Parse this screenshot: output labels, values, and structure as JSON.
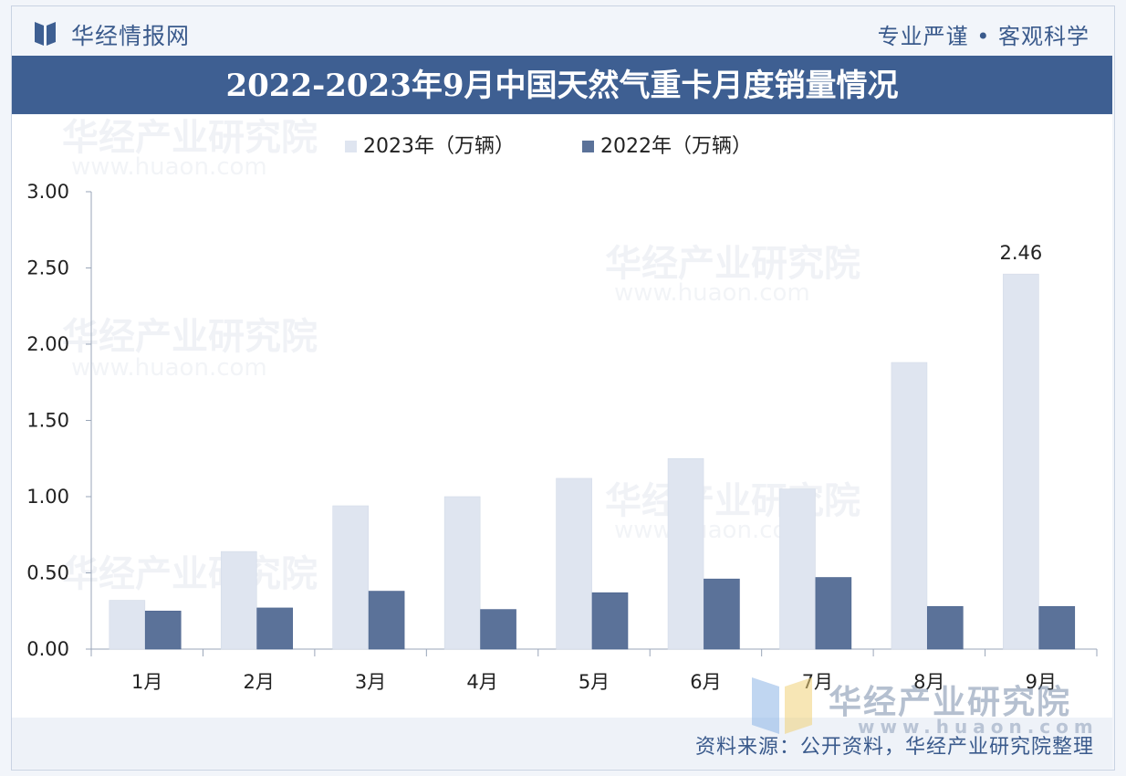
{
  "header": {
    "brand": "华经情报网",
    "slogan": "专业严谨 • 客观科学"
  },
  "chart_data": {
    "type": "bar",
    "title": "2022-2023年9月中国天然气重卡月度销量情况",
    "categories": [
      "1月",
      "2月",
      "3月",
      "4月",
      "5月",
      "6月",
      "7月",
      "8月",
      "9月"
    ],
    "series": [
      {
        "name": "2023年（万辆）",
        "values": [
          0.32,
          0.64,
          0.94,
          1.0,
          1.12,
          1.25,
          1.05,
          1.88,
          2.46
        ]
      },
      {
        "name": "2022年（万辆）",
        "values": [
          0.25,
          0.27,
          0.38,
          0.26,
          0.37,
          0.46,
          0.47,
          0.28,
          0.28
        ]
      }
    ],
    "data_labels": [
      {
        "series": 0,
        "index": 8,
        "text": "2.46"
      }
    ],
    "yticks": [
      "0.00",
      "0.50",
      "1.00",
      "1.50",
      "2.00",
      "2.50",
      "3.00"
    ],
    "ylim": [
      0,
      3
    ],
    "legend_position": "top-center",
    "grid": false,
    "colors": {
      "2023": "#dfe5f0",
      "2022": "#5b7299"
    }
  },
  "footer": {
    "source": "资料来源：公开资料，华经产业研究院整理"
  },
  "watermark": {
    "name": "华经产业研究院",
    "url": "www.huaon.com"
  },
  "colors": {
    "brand": "#3e5f92"
  },
  "icons": {
    "logo": "huajing-logo-icon"
  }
}
